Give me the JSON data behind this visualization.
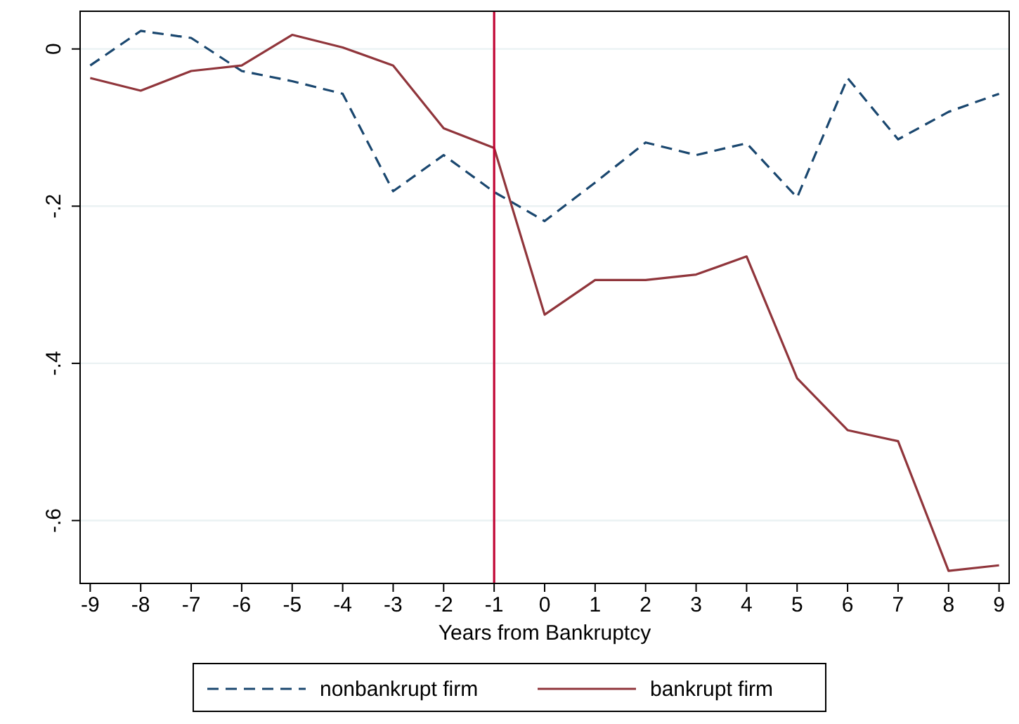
{
  "chart_data": {
    "type": "line",
    "xlabel": "Years from Bankruptcy",
    "x": [
      -9,
      -8,
      -7,
      -6,
      -5,
      -4,
      -3,
      -2,
      -1,
      0,
      1,
      2,
      3,
      4,
      5,
      6,
      7,
      8,
      9
    ],
    "series": [
      {
        "name": "nonbankrupt firm",
        "color": "#1a476f",
        "line_style": "dashed",
        "values": [
          -0.021,
          0.023,
          0.014,
          -0.028,
          -0.041,
          -0.057,
          -0.181,
          -0.135,
          -0.182,
          -0.219,
          -0.17,
          -0.119,
          -0.135,
          -0.12,
          -0.189,
          -0.037,
          -0.115,
          -0.08,
          -0.057
        ]
      },
      {
        "name": "bankrupt firm",
        "color": "#90353b",
        "line_style": "solid",
        "values": [
          -0.037,
          -0.053,
          -0.028,
          -0.021,
          0.018,
          0.002,
          -0.021,
          -0.101,
          -0.126,
          -0.338,
          -0.294,
          -0.294,
          -0.287,
          -0.264,
          -0.419,
          -0.485,
          -0.499,
          -0.664,
          -0.657
        ]
      }
    ],
    "xlim": [
      -9.2,
      9.2
    ],
    "xticks": [
      -9,
      -8,
      -7,
      -6,
      -5,
      -4,
      -3,
      -2,
      -1,
      0,
      1,
      2,
      3,
      4,
      5,
      6,
      7,
      8,
      9
    ],
    "ylim": [
      -0.68,
      0.048
    ],
    "yticks": [
      {
        "value": 0,
        "label": "0"
      },
      {
        "value": -0.2,
        "label": "-.2"
      },
      {
        "value": -0.4,
        "label": "-.4"
      },
      {
        "value": -0.6,
        "label": "-.6"
      }
    ],
    "grid": "y",
    "legend": "bottom",
    "marker": "none",
    "ref_lines": [
      {
        "axis": "x",
        "value": -1,
        "color": "#c10534"
      }
    ]
  }
}
